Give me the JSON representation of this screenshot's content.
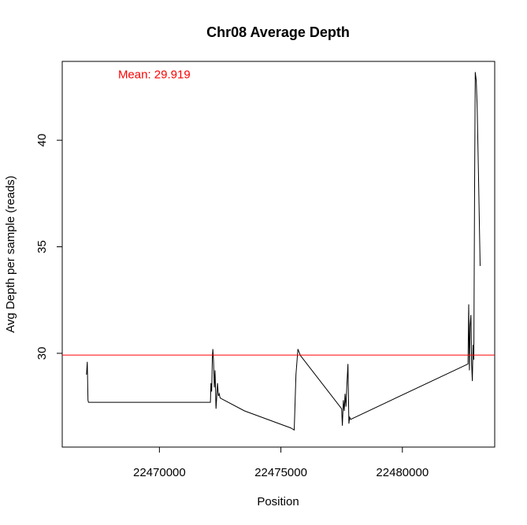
{
  "chart_data": {
    "type": "line",
    "title": "Chr08 Average Depth",
    "xlabel": "Position",
    "ylabel": "Avg Depth per sample (reads)",
    "xlim": [
      22466000,
      22483800
    ],
    "ylim": [
      25.6,
      43.7
    ],
    "xticks": [
      22470000,
      22475000,
      22480000
    ],
    "xtick_labels": [
      "22470000",
      "22475000",
      "22480000"
    ],
    "yticks": [
      30,
      35,
      40
    ],
    "ytick_labels": [
      "30",
      "35",
      "40"
    ],
    "grid": false,
    "legend": "none",
    "series_color": "#000000",
    "hline": {
      "y": 29.919,
      "color": "#ff0000"
    },
    "annotation": {
      "text": "Mean: 29.919",
      "x": 22468300,
      "y": 42.9,
      "color": "#ff0000"
    },
    "series": [
      {
        "x": [
          22467000,
          22467030,
          22467060,
          22467080,
          22467110,
          22469000,
          22472100,
          22472120,
          22472150,
          22472180,
          22472200,
          22472230,
          22472260,
          22472290,
          22472330,
          22472360,
          22472390,
          22472430,
          22472460,
          22472500,
          22473500,
          22475400,
          22475550,
          22475620,
          22475700,
          22475800,
          22477500,
          22477530,
          22477570,
          22477610,
          22477640,
          22477680,
          22477710,
          22477760,
          22477800,
          22477830,
          22477870,
          22482700,
          22482730,
          22482760,
          22482790,
          22482820,
          22482850,
          22482880,
          22482910,
          22482940,
          22482970,
          22483000,
          22483040,
          22483080,
          22483140,
          22483200
        ],
        "y": [
          29.0,
          29.6,
          27.8,
          27.7,
          27.7,
          27.7,
          27.7,
          28.6,
          28.2,
          29.8,
          30.2,
          29.6,
          28.4,
          29.2,
          27.4,
          28.0,
          28.6,
          28.0,
          28.1,
          27.9,
          27.3,
          26.5,
          26.4,
          29.0,
          30.2,
          29.9,
          27.4,
          26.6,
          27.8,
          27.3,
          28.1,
          27.5,
          28.4,
          29.5,
          26.7,
          27.0,
          26.9,
          29.5,
          32.3,
          29.2,
          31.3,
          31.8,
          29.5,
          28.7,
          30.4,
          29.7,
          37.2,
          43.2,
          42.8,
          41.5,
          38.0,
          34.1
        ]
      }
    ]
  }
}
